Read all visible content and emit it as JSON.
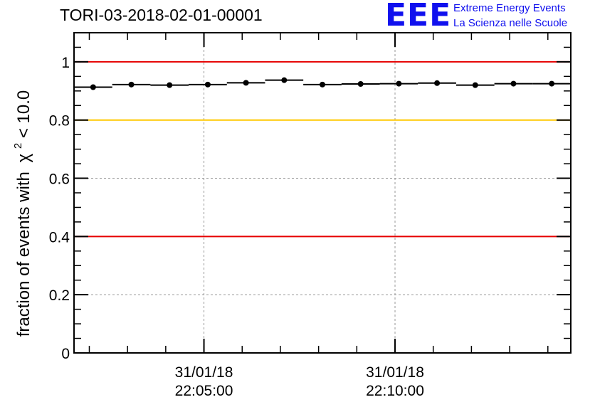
{
  "title": "TORI-03-2018-02-01-00001",
  "logo": {
    "mark": "EEE",
    "line1": "Extreme Energy Events",
    "line2": "La Scienza nelle Scuole"
  },
  "colors": {
    "threshold_red": "#e60000",
    "threshold_yellow": "#ffc800",
    "logo_blue": "#1010ee",
    "points": "#000000"
  },
  "chart_data": {
    "type": "scatter",
    "title": "TORI-03-2018-02-01-00001",
    "ylabel": "fraction of events with",
    "ylabel_symbol": "χ",
    "ylabel_sup": "2",
    "ylabel_cut": " < 10.0",
    "ylim": [
      0,
      1.1
    ],
    "yticks": [
      {
        "value": 0,
        "label": "0"
      },
      {
        "value": 0.2,
        "label": "0.2"
      },
      {
        "value": 0.4,
        "label": "0.4"
      },
      {
        "value": 0.6,
        "label": "0.6"
      },
      {
        "value": 0.8,
        "label": "0.8"
      },
      {
        "value": 1,
        "label": "1"
      }
    ],
    "x_unit": "minutes",
    "xlim": [
      21.6,
      34.6
    ],
    "xticks": [
      {
        "value": 25,
        "line1": "31/01/18",
        "line2": "22:05:00"
      },
      {
        "value": 30,
        "line1": "31/01/18",
        "line2": "22:10:00"
      }
    ],
    "grid": true,
    "reference_lines": [
      {
        "value": 1.0,
        "color": "#e60000"
      },
      {
        "value": 0.8,
        "color": "#ffc800"
      },
      {
        "value": 0.4,
        "color": "#e60000"
      }
    ],
    "series": [
      {
        "x": [
          22.1,
          23.1,
          24.1,
          25.1,
          26.1,
          27.1,
          28.1,
          29.1,
          30.1,
          31.1,
          32.1,
          33.1,
          34.1
        ],
        "y": [
          0.913,
          0.922,
          0.92,
          0.922,
          0.928,
          0.937,
          0.922,
          0.924,
          0.925,
          0.927,
          0.92,
          0.925,
          0.925
        ],
        "xerr": 0.5
      }
    ]
  }
}
